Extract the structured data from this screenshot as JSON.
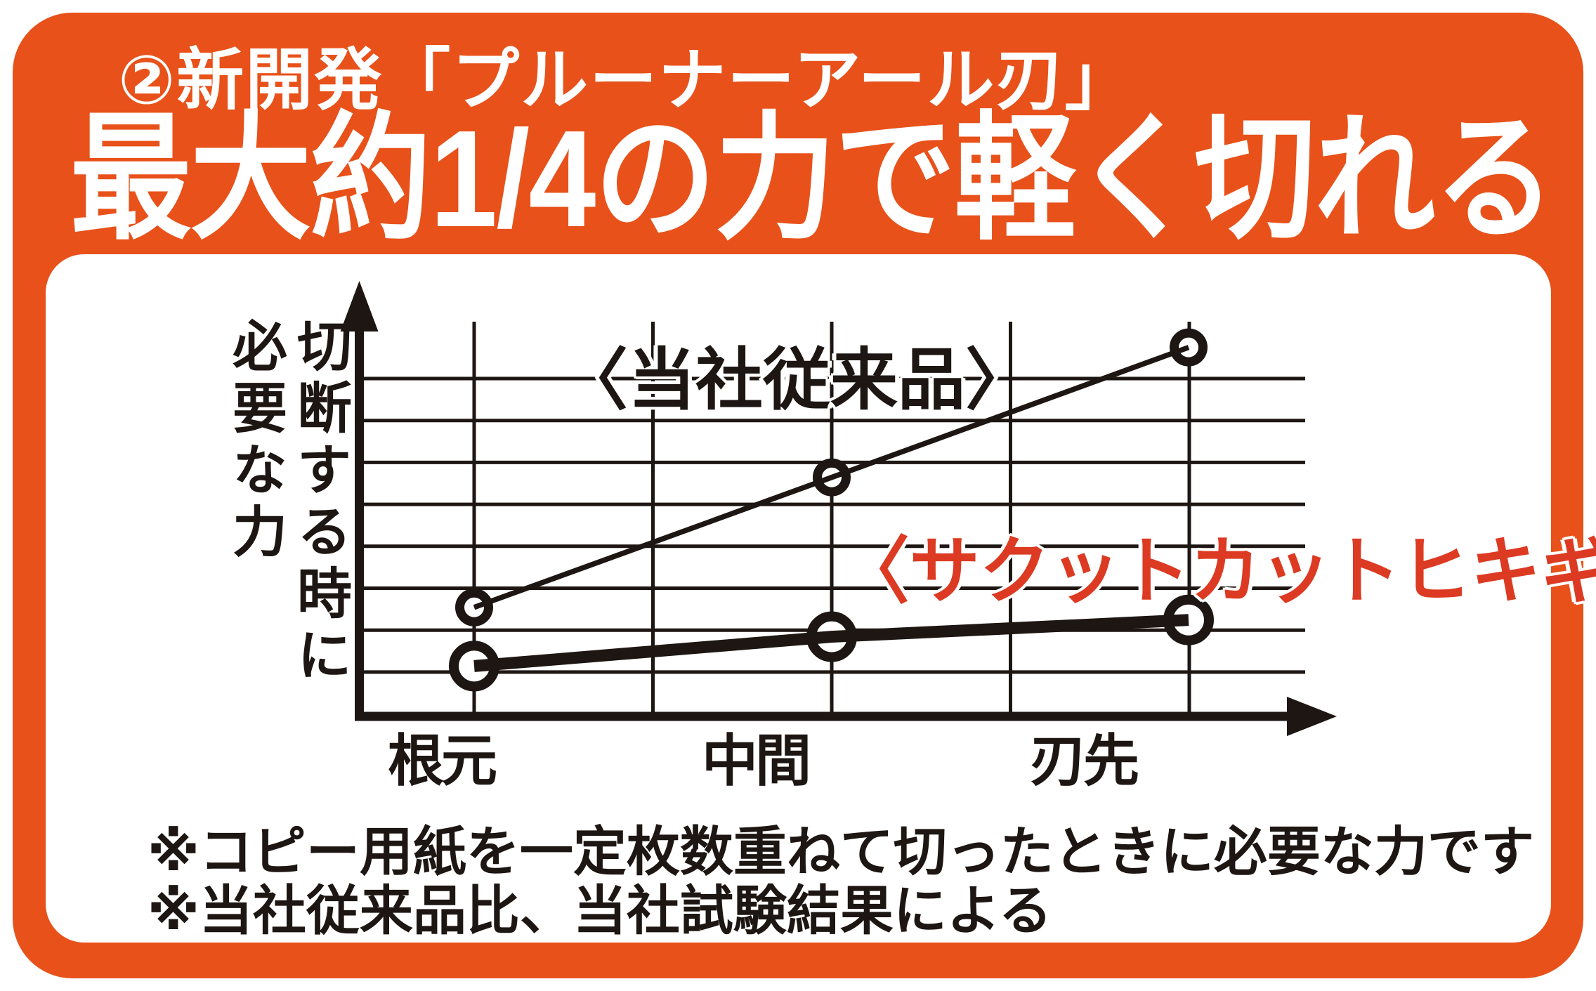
{
  "header": {
    "subtitle": "②新開発「プルーナーアール刃」",
    "title": "最大約1/4の力で軽く切れる"
  },
  "chart_data": {
    "type": "line",
    "title": "",
    "xlabel": "",
    "ylabel": "切断する時に必要な力",
    "ylabel_columns": [
      "切断する時に",
      "必要な力"
    ],
    "categories": [
      "根元",
      "中間",
      "刃先"
    ],
    "series": [
      {
        "name": "〈当社従来品〉",
        "values": [
          2.6,
          5.7,
          8.8
        ],
        "line_style": "thin",
        "marker": "open-circle-small",
        "color": "#1d1613",
        "label_color": "#1d1613"
      },
      {
        "name": "〈サクットカットヒキギリ〉",
        "values": [
          1.2,
          1.9,
          2.3
        ],
        "line_style": "thick",
        "marker": "open-circle-large",
        "color": "#1d1613",
        "label_color": "#dc3a22"
      }
    ],
    "ylim": [
      0,
      9.4
    ],
    "y_unit": "relative force (unlabeled)",
    "grid": {
      "h_lines": 8,
      "v_lines": 5,
      "visible": true
    },
    "legend_position": "inline-annotations",
    "axes": {
      "y_arrow": true,
      "x_arrow": true
    }
  },
  "footnotes": [
    "※コピー用紙を一定枚数重ねて切ったときに必要な力です",
    "※当社従来品比、当社試験結果による"
  ],
  "colors": {
    "background_orange": "#e8511a",
    "panel_white": "#ffffff",
    "ink_black": "#1d1613",
    "accent_red": "#dc3a22"
  }
}
